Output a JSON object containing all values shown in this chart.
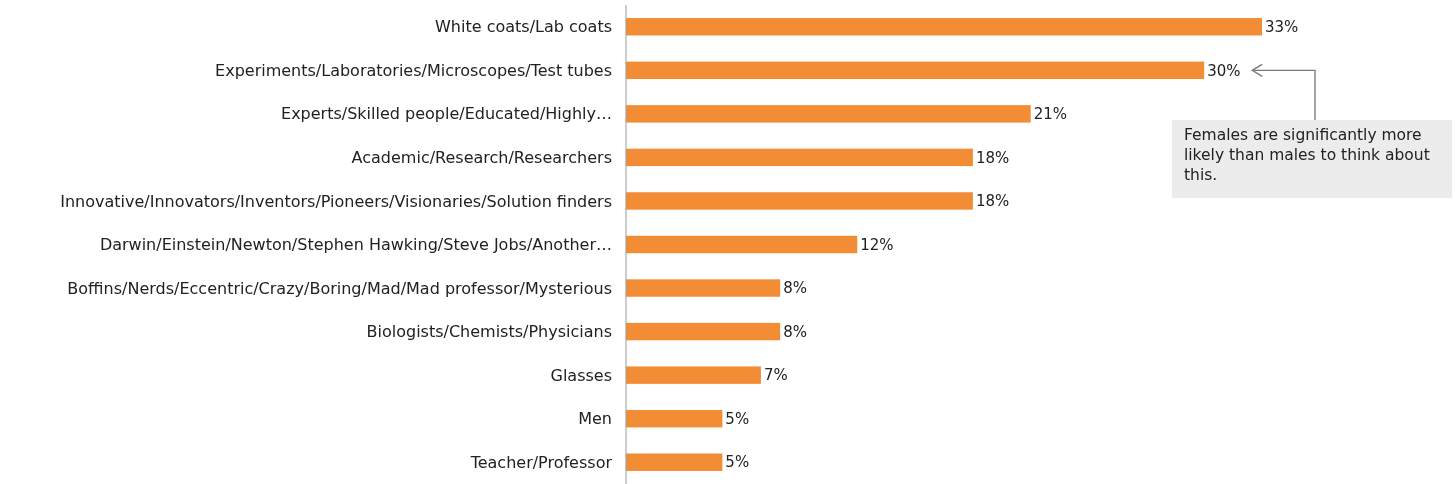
{
  "chart_data": {
    "type": "bar",
    "orientation": "horizontal",
    "categories": [
      "White coats/Lab coats",
      "Experiments/Laboratories/Microscopes/Test tubes",
      "Experts/Skilled people/Educated/Highly…",
      "Academic/Research/Researchers",
      "Innovative/Innovators/Inventors/Pioneers/Visionaries/Solution finders",
      "Darwin/Einstein/Newton/Stephen Hawking/Steve Jobs/Another…",
      "Boffins/Nerds/Eccentric/Crazy/Boring/Mad/Mad professor/Mysterious",
      "Biologists/Chemists/Physicians",
      "Glasses",
      "Men",
      "Teacher/Professor"
    ],
    "values": [
      33,
      30,
      21,
      18,
      18,
      12,
      8,
      8,
      7,
      5,
      5
    ],
    "value_labels": [
      "33%",
      "30%",
      "21%",
      "18%",
      "18%",
      "12%",
      "8%",
      "8%",
      "7%",
      "5%",
      "5%"
    ],
    "color": "#f28c35",
    "annotations": [
      "Females are significantly more likely than males to think about this."
    ]
  }
}
